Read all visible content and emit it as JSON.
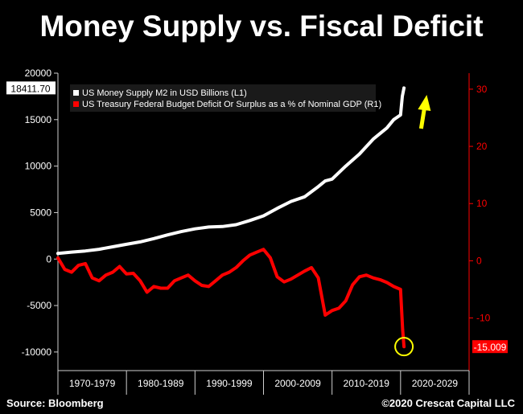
{
  "header": {
    "title": "Money Supply vs. Fiscal Deficit"
  },
  "footer": {
    "source": "Source: Bloomberg",
    "copyright": "©2020 Crescat Capital LLC"
  },
  "colors": {
    "m2": "#ffffff",
    "deficit": "#ff0000",
    "arrow": "#ffff00",
    "marker": "#ffff00",
    "axis_right": "#ff0000"
  },
  "chart_data": {
    "type": "line",
    "legend": [
      "US Money Supply M2 in USD Billions (L1)",
      "US Treasury Federal Budget Deficit Or Surplus as a % of Nominal GDP (R1)"
    ],
    "legend_placement": "top-left",
    "x_range": [
      1970,
      2030
    ],
    "x_tick_labels": [
      "1970-1979",
      "1980-1989",
      "1990-1999",
      "2000-2009",
      "2010-2019",
      "2020-2029"
    ],
    "y_left": {
      "ticks": [
        20000,
        15000,
        10000,
        5000,
        0,
        -5000,
        -10000
      ],
      "range": [
        -12000,
        20000
      ]
    },
    "y_right": {
      "ticks": [
        30,
        20,
        10,
        0,
        -10
      ],
      "range": [
        -19.2,
        32.8
      ]
    },
    "last_value_labels": {
      "m2": "18411.70",
      "deficit": "-15.009"
    },
    "grid": false,
    "series": [
      {
        "name": "US Money Supply M2 in USD Billions (L1)",
        "axis": "left",
        "x": [
          1970,
          1972,
          1974,
          1976,
          1978,
          1980,
          1982,
          1984,
          1986,
          1988,
          1990,
          1992,
          1994,
          1996,
          1998,
          2000,
          2002,
          2004,
          2006,
          2008,
          2009,
          2010,
          2012,
          2014,
          2016,
          2018,
          2019,
          2020.0,
          2020.25,
          2020.5
        ],
        "values": [
          600,
          750,
          870,
          1050,
          1320,
          1590,
          1850,
          2200,
          2600,
          2950,
          3250,
          3450,
          3500,
          3700,
          4150,
          4650,
          5450,
          6200,
          6700,
          7800,
          8400,
          8600,
          10000,
          11300,
          12900,
          14100,
          15000,
          15500,
          17500,
          18411.7
        ]
      },
      {
        "name": "US Treasury Federal Budget Deficit Or Surplus as a % of Nominal GDP (R1)",
        "axis": "right",
        "x": [
          1970,
          1971,
          1972,
          1973,
          1974,
          1975,
          1976,
          1977,
          1978,
          1979,
          1980,
          1981,
          1982,
          1983,
          1984,
          1985,
          1986,
          1987,
          1988,
          1989,
          1990,
          1991,
          1992,
          1993,
          1994,
          1995,
          1996,
          1997,
          1998,
          1999,
          2000,
          2001,
          2002,
          2003,
          2004,
          2005,
          2006,
          2007,
          2008,
          2009,
          2010,
          2011,
          2012,
          2013,
          2014,
          2015,
          2016,
          2017,
          2018,
          2019,
          2020.0,
          2020.3,
          2020.5
        ],
        "values": [
          0.5,
          -1.5,
          -2.0,
          -0.8,
          -0.5,
          -3.0,
          -3.5,
          -2.5,
          -2.0,
          -1.0,
          -2.3,
          -2.2,
          -3.5,
          -5.5,
          -4.5,
          -4.8,
          -4.8,
          -3.5,
          -3.0,
          -2.5,
          -3.5,
          -4.3,
          -4.5,
          -3.5,
          -2.5,
          -2.0,
          -1.2,
          0.0,
          1.0,
          1.5,
          2.0,
          0.5,
          -2.8,
          -3.7,
          -3.2,
          -2.5,
          -1.8,
          -1.2,
          -3.0,
          -9.5,
          -8.7,
          -8.3,
          -7.0,
          -4.2,
          -2.8,
          -2.5,
          -3.0,
          -3.3,
          -3.8,
          -4.5,
          -5.0,
          -12.0,
          -15.009
        ]
      }
    ]
  }
}
